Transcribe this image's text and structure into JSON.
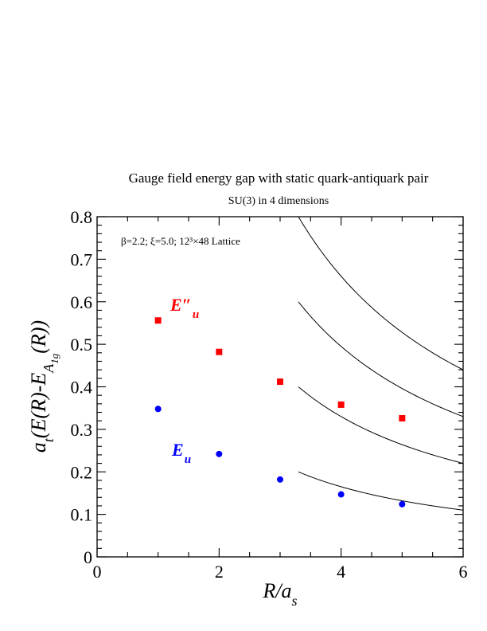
{
  "chart_data": {
    "type": "scatter",
    "title": "Gauge field energy gap with static quark-antiquark pair",
    "subtitle": "SU(3) in 4 dimensions",
    "annotation": "β=2.2; ξ=5.0; 12³×48 Lattice",
    "xlabel": {
      "main": "R/a",
      "sub": "s"
    },
    "ylabel": {
      "a": "a",
      "t": "t",
      "mid": "(E(R)-E",
      "A": "A",
      "sub1g": "1g",
      "end": "(R))"
    },
    "xlim": [
      0,
      6
    ],
    "ylim": [
      0,
      0.8
    ],
    "x_ticks": [
      "0",
      "2",
      "4",
      "6"
    ],
    "y_ticks": [
      "0",
      "0.1",
      "0.2",
      "0.3",
      "0.4",
      "0.5",
      "0.6",
      "0.7",
      "0.8"
    ],
    "grid": false,
    "series": [
      {
        "name": "E″u",
        "label_main": "E″",
        "label_sub": "u",
        "color": "#ff0000",
        "marker": "square",
        "x": [
          1,
          2,
          3,
          4,
          5
        ],
        "y": [
          0.556,
          0.482,
          0.412,
          0.358,
          0.326
        ]
      },
      {
        "name": "Eu",
        "label_main": "E",
        "label_sub": "u",
        "color": "#0000ff",
        "marker": "circle",
        "x": [
          1,
          2,
          3,
          4,
          5
        ],
        "y": [
          0.348,
          0.242,
          0.182,
          0.147,
          0.124
        ]
      }
    ],
    "curves": [
      {
        "x_start": 3.3,
        "x_end": 6.0,
        "y_start": 0.2,
        "y_end": 0.111,
        "color": "#000000"
      },
      {
        "x_start": 3.3,
        "x_end": 6.0,
        "y_start": 0.4,
        "y_end": 0.222,
        "color": "#000000"
      },
      {
        "x_start": 3.3,
        "x_end": 6.0,
        "y_start": 0.6,
        "y_end": 0.333,
        "color": "#000000"
      },
      {
        "x_start": 3.3,
        "x_end": 6.0,
        "y_start": 0.8,
        "y_end": 0.444,
        "color": "#000000"
      }
    ]
  }
}
